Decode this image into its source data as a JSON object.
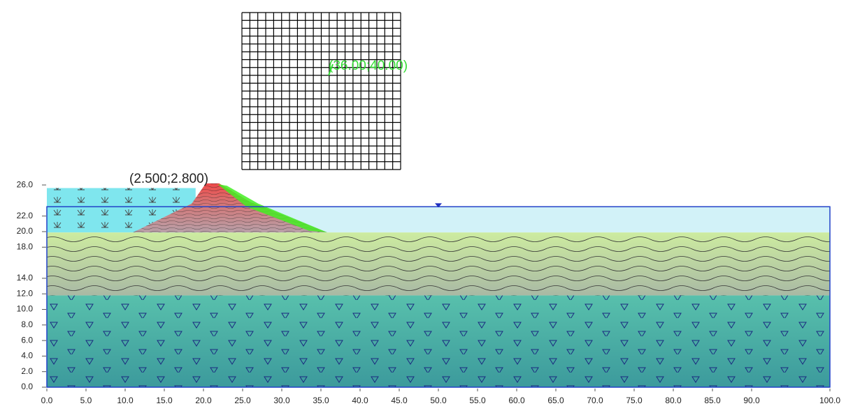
{
  "axes": {
    "x_ticks": [
      {
        "value": 0,
        "label": "0.0"
      },
      {
        "value": 5,
        "label": "5.0"
      },
      {
        "value": 10,
        "label": "10.0"
      },
      {
        "value": 15,
        "label": "15.0"
      },
      {
        "value": 20,
        "label": "20.0"
      },
      {
        "value": 25,
        "label": "25.0"
      },
      {
        "value": 30,
        "label": "30.0"
      },
      {
        "value": 35,
        "label": "35.0"
      },
      {
        "value": 40,
        "label": "40.0"
      },
      {
        "value": 45,
        "label": "45.0"
      },
      {
        "value": 50,
        "label": "50.0"
      },
      {
        "value": 55,
        "label": "55.0"
      },
      {
        "value": 60,
        "label": "60.0"
      },
      {
        "value": 65,
        "label": "65.0"
      },
      {
        "value": 70,
        "label": "70.0"
      },
      {
        "value": 75,
        "label": "75.0"
      },
      {
        "value": 80,
        "label": "80.0"
      },
      {
        "value": 85,
        "label": "85.0"
      },
      {
        "value": 90,
        "label": "90.0"
      },
      {
        "value": 100,
        "label": "100.0"
      }
    ],
    "y_ticks": [
      {
        "value": 0,
        "label": "0.0"
      },
      {
        "value": 2,
        "label": "2.0"
      },
      {
        "value": 4,
        "label": "4.0"
      },
      {
        "value": 6,
        "label": "6.0"
      },
      {
        "value": 8,
        "label": "8.0"
      },
      {
        "value": 10,
        "label": "10.0"
      },
      {
        "value": 12,
        "label": "12.0"
      },
      {
        "value": 14,
        "label": "14.0"
      },
      {
        "value": 18,
        "label": "18.0"
      },
      {
        "value": 20,
        "label": "20.0"
      },
      {
        "value": 22,
        "label": "22.0"
      },
      {
        "value": 26,
        "label": "26.0"
      }
    ]
  },
  "annotations": {
    "radius_label": "(2.500;2.800)",
    "center_label": "(36.00;40.00)"
  }
}
